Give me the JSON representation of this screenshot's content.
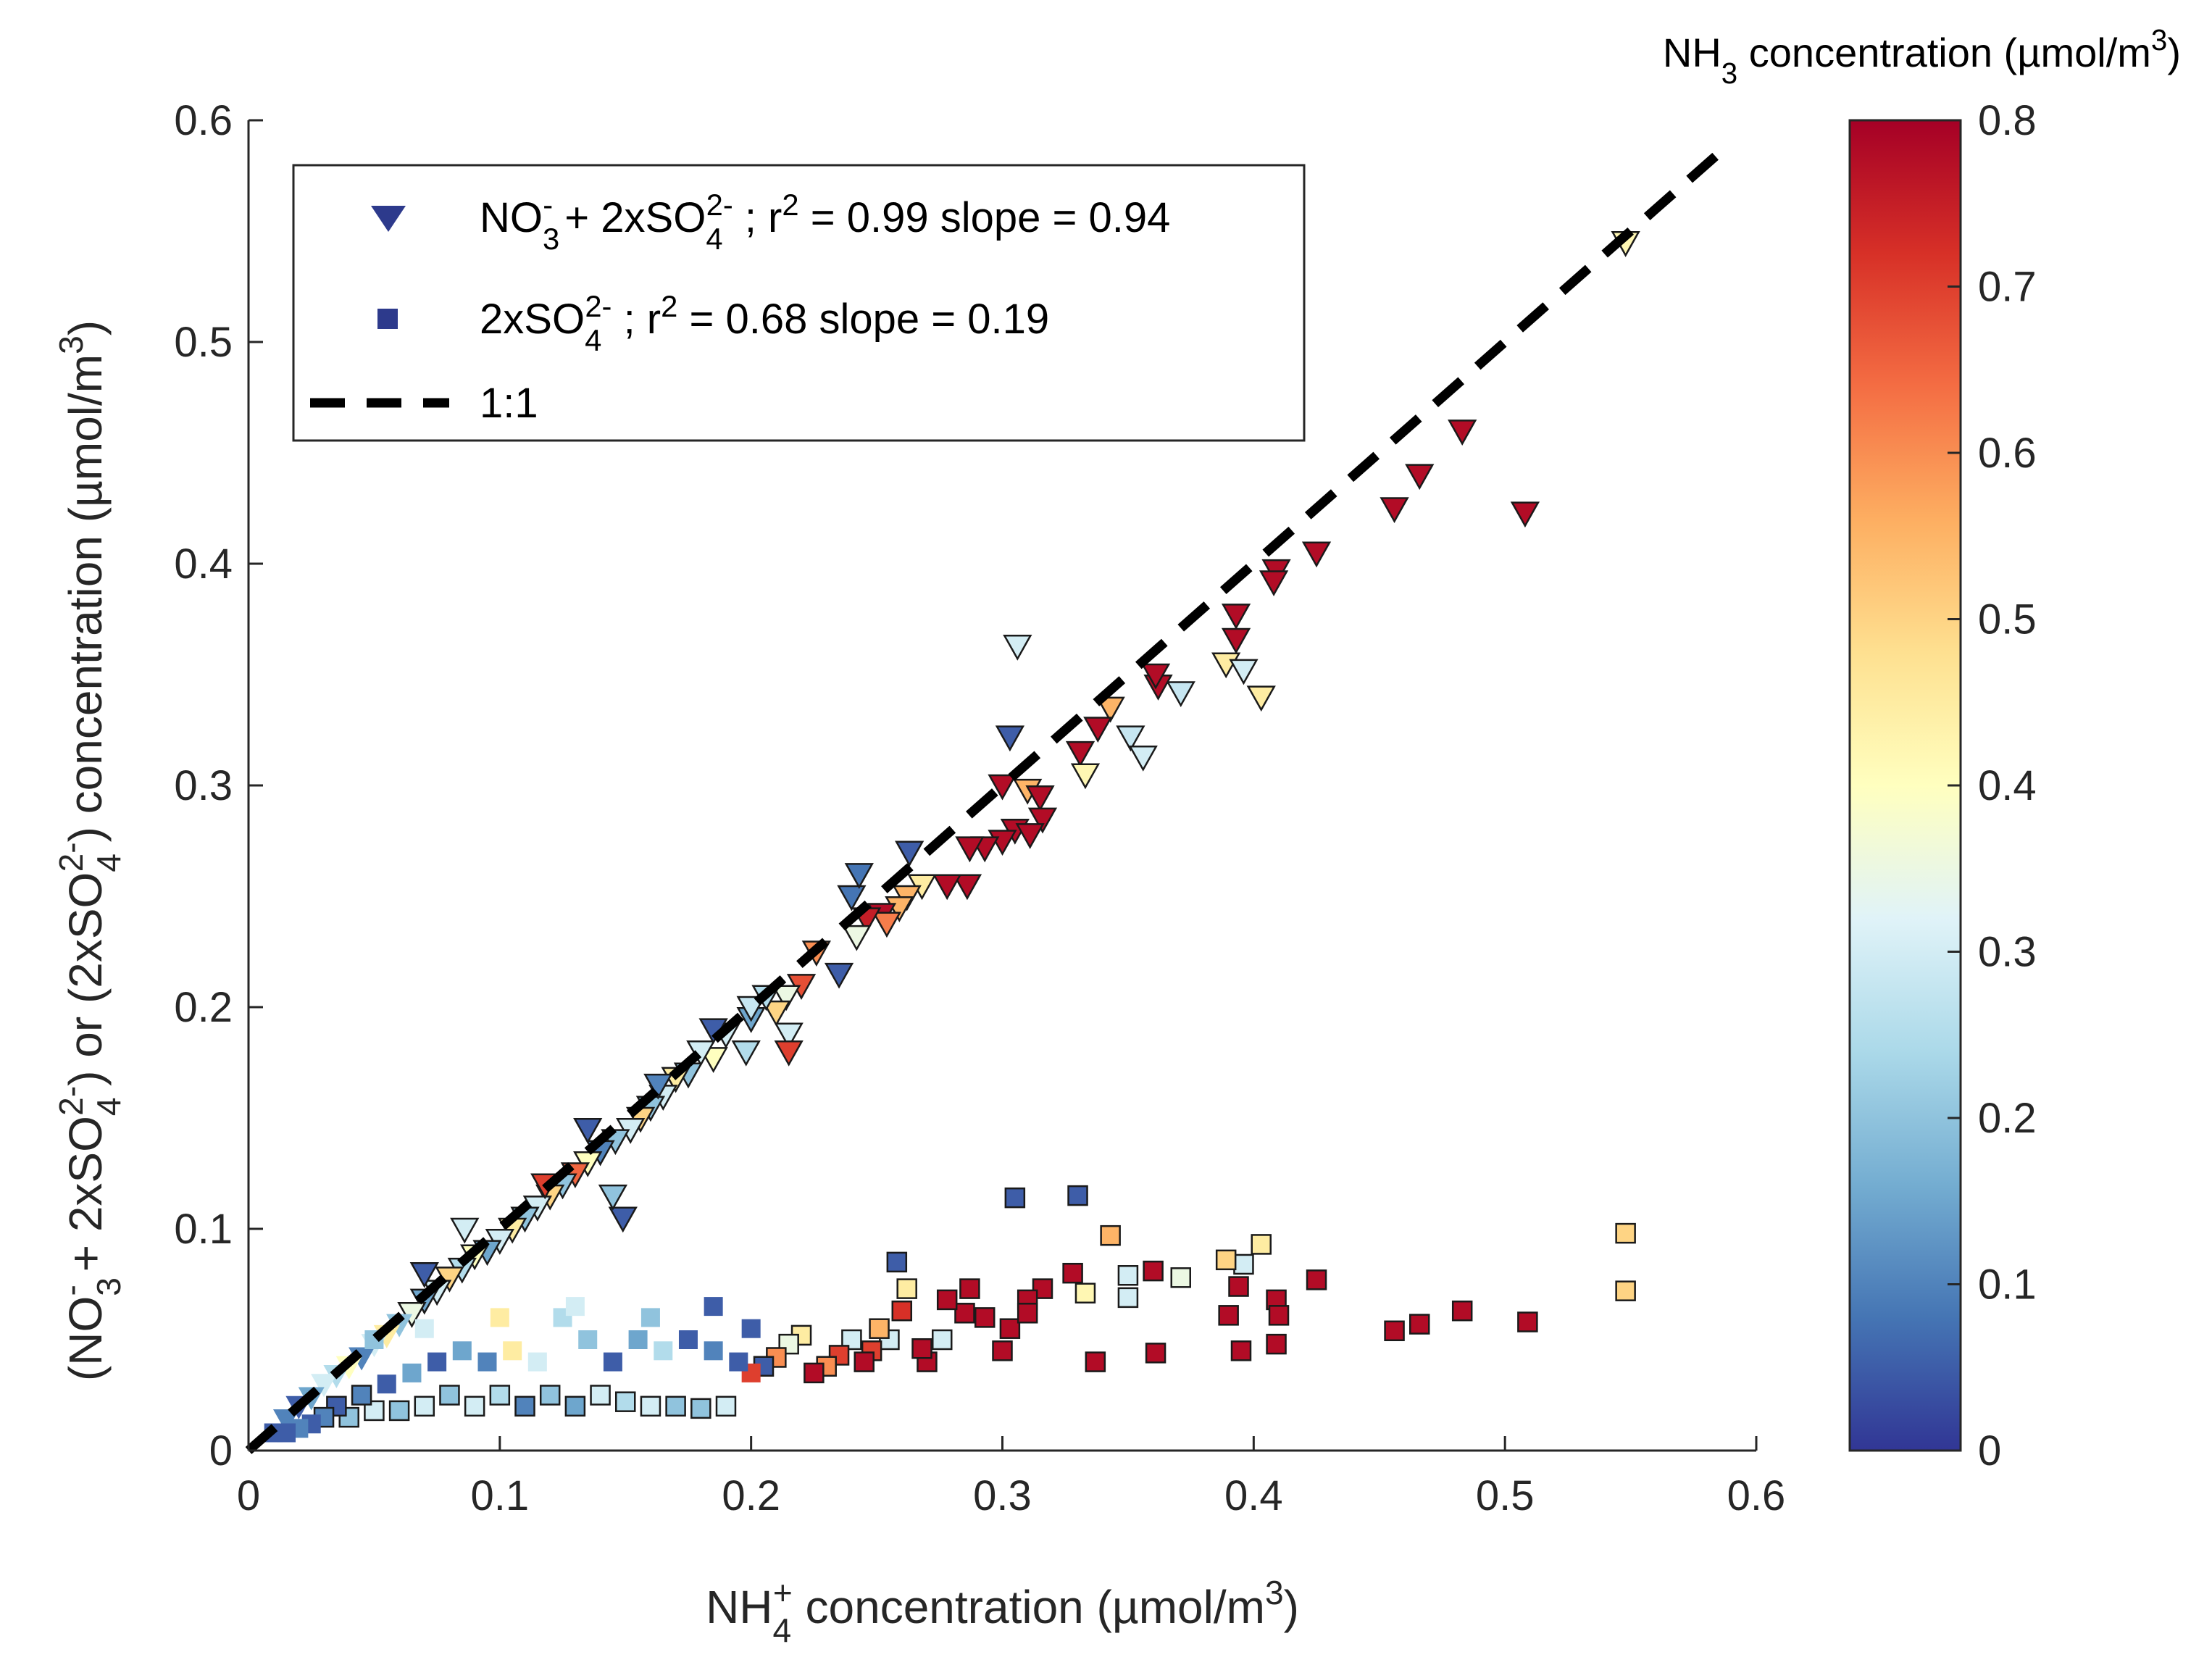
{
  "chart_data": {
    "type": "scatter",
    "xlabel": {
      "base": "NH",
      "sub": "4",
      "sup": "+",
      "rest": " concentration (µmol/m",
      "sup2": "3",
      "end": ")"
    },
    "ylabel": {
      "parts": [
        {
          "t": "(NO"
        },
        {
          "sub": "3",
          "sup": "-"
        },
        {
          "t": " + 2xSO"
        },
        {
          "sub": "4",
          "sup": "2-"
        },
        {
          "t": ") or (2xSO"
        },
        {
          "sub": "4",
          "sup": "2-"
        },
        {
          "t": ") concentration (µmol/m"
        },
        {
          "sup": "3"
        },
        {
          "t": ")"
        }
      ]
    },
    "xlim": [
      0,
      0.6
    ],
    "ylim": [
      0,
      0.6
    ],
    "x_ticks": [
      0,
      0.1,
      0.2,
      0.3,
      0.4,
      0.5,
      0.6
    ],
    "x_tick_labels": [
      "0",
      "0.1",
      "0.2",
      "0.3",
      "0.4",
      "0.5",
      "0.6"
    ],
    "y_ticks": [
      0,
      0.1,
      0.2,
      0.3,
      0.4,
      0.5,
      0.6
    ],
    "y_tick_labels": [
      "0",
      "0.1",
      "0.2",
      "0.3",
      "0.4",
      "0.5",
      "0.6"
    ],
    "colorbar": {
      "title": {
        "base": "NH",
        "sub": "3",
        "rest": " concentration (µmol/m",
        "sup": "3",
        "end": ")"
      },
      "range": [
        0,
        0.8
      ],
      "ticks": [
        0,
        0.1,
        0.2,
        0.3,
        0.4,
        0.5,
        0.6,
        0.7,
        0.8
      ],
      "tick_labels": [
        "0",
        "0.1",
        "0.2",
        "0.3",
        "0.4",
        "0.5",
        "0.6",
        "0.7",
        "0.8"
      ],
      "colormap": [
        "#313695",
        "#4575b4",
        "#74add1",
        "#abd9e9",
        "#e0f3f8",
        "#ffffbf",
        "#fee090",
        "#fdae61",
        "#f46d43",
        "#d73027",
        "#a50026"
      ]
    },
    "legend": {
      "location": "top-left",
      "entries": [
        {
          "marker": "triangle-down",
          "color": "#2d3a8c",
          "parts": [
            {
              "t": "NO"
            },
            {
              "sub": "3",
              "sup": "-"
            },
            {
              "t": " + 2xSO"
            },
            {
              "sub": "4",
              "sup": "2-"
            },
            {
              "t": " ; r"
            },
            {
              "sup": "2"
            },
            {
              "t": " = 0.99 slope = 0.94"
            }
          ]
        },
        {
          "marker": "square",
          "color": "#2d3a8c",
          "parts": [
            {
              "t": "2xSO"
            },
            {
              "sub": "4",
              "sup": "2-"
            },
            {
              "t": " ; r"
            },
            {
              "sup": "2"
            },
            {
              "t": " = 0.68 slope = 0.19"
            }
          ]
        },
        {
          "marker": "dashed-line",
          "color": "#000000",
          "parts": [
            {
              "t": "1:1"
            }
          ]
        }
      ]
    },
    "reference_line": {
      "name": "1:1",
      "x": [
        0,
        0.59
      ],
      "y": [
        0,
        0.59
      ],
      "style": "dashed"
    },
    "series": [
      {
        "name": "NO3- + 2xSO4 2-",
        "marker": "triangle-down",
        "points_xyc": [
          [
            0.548,
            0.545,
            0.42
          ],
          [
            0.483,
            0.46,
            0.78
          ],
          [
            0.466,
            0.44,
            0.78
          ],
          [
            0.456,
            0.425,
            0.78
          ],
          [
            0.508,
            0.423,
            0.78
          ],
          [
            0.425,
            0.405,
            0.78
          ],
          [
            0.409,
            0.397,
            0.78
          ],
          [
            0.408,
            0.392,
            0.78
          ],
          [
            0.393,
            0.377,
            0.78
          ],
          [
            0.393,
            0.366,
            0.78
          ],
          [
            0.389,
            0.355,
            0.45
          ],
          [
            0.396,
            0.352,
            0.3
          ],
          [
            0.403,
            0.34,
            0.45
          ],
          [
            0.371,
            0.342,
            0.28
          ],
          [
            0.362,
            0.345,
            0.78
          ],
          [
            0.361,
            0.35,
            0.78
          ],
          [
            0.343,
            0.335,
            0.55
          ],
          [
            0.338,
            0.326,
            0.78
          ],
          [
            0.351,
            0.322,
            0.28
          ],
          [
            0.356,
            0.313,
            0.3
          ],
          [
            0.331,
            0.315,
            0.78
          ],
          [
            0.333,
            0.305,
            0.42
          ],
          [
            0.306,
            0.363,
            0.3
          ],
          [
            0.303,
            0.322,
            0.05
          ],
          [
            0.3,
            0.3,
            0.78
          ],
          [
            0.31,
            0.298,
            0.55
          ],
          [
            0.315,
            0.295,
            0.78
          ],
          [
            0.316,
            0.285,
            0.78
          ],
          [
            0.305,
            0.28,
            0.78
          ],
          [
            0.311,
            0.278,
            0.78
          ],
          [
            0.3,
            0.275,
            0.78
          ],
          [
            0.293,
            0.272,
            0.78
          ],
          [
            0.287,
            0.272,
            0.78
          ],
          [
            0.286,
            0.255,
            0.78
          ],
          [
            0.278,
            0.255,
            0.78
          ],
          [
            0.263,
            0.27,
            0.05
          ],
          [
            0.268,
            0.255,
            0.45
          ],
          [
            0.262,
            0.25,
            0.55
          ],
          [
            0.259,
            0.245,
            0.55
          ],
          [
            0.252,
            0.242,
            0.78
          ],
          [
            0.254,
            0.238,
            0.62
          ],
          [
            0.246,
            0.24,
            0.75
          ],
          [
            0.242,
            0.232,
            0.35
          ],
          [
            0.24,
            0.25,
            0.08
          ],
          [
            0.243,
            0.26,
            0.08
          ],
          [
            0.226,
            0.225,
            0.6
          ],
          [
            0.22,
            0.21,
            0.68
          ],
          [
            0.214,
            0.205,
            0.35
          ],
          [
            0.215,
            0.188,
            0.3
          ],
          [
            0.21,
            0.198,
            0.5
          ],
          [
            0.206,
            0.205,
            0.25
          ],
          [
            0.2,
            0.195,
            0.15
          ],
          [
            0.2,
            0.2,
            0.28
          ],
          [
            0.198,
            0.18,
            0.25
          ],
          [
            0.19,
            0.188,
            0.3
          ],
          [
            0.185,
            0.177,
            0.4
          ],
          [
            0.18,
            0.18,
            0.3
          ],
          [
            0.175,
            0.17,
            0.2
          ],
          [
            0.17,
            0.168,
            0.45
          ],
          [
            0.165,
            0.16,
            0.3
          ],
          [
            0.16,
            0.155,
            0.2
          ],
          [
            0.156,
            0.15,
            0.5
          ],
          [
            0.152,
            0.145,
            0.3
          ],
          [
            0.146,
            0.14,
            0.2
          ],
          [
            0.14,
            0.135,
            0.1
          ],
          [
            0.135,
            0.13,
            0.4
          ],
          [
            0.13,
            0.125,
            0.65
          ],
          [
            0.125,
            0.12,
            0.2
          ],
          [
            0.12,
            0.115,
            0.5
          ],
          [
            0.115,
            0.11,
            0.3
          ],
          [
            0.11,
            0.105,
            0.2
          ],
          [
            0.105,
            0.1,
            0.45
          ],
          [
            0.1,
            0.095,
            0.3
          ],
          [
            0.095,
            0.09,
            0.15
          ],
          [
            0.09,
            0.088,
            0.4
          ],
          [
            0.085,
            0.082,
            0.25
          ],
          [
            0.08,
            0.078,
            0.5
          ],
          [
            0.075,
            0.072,
            0.3
          ],
          [
            0.07,
            0.068,
            0.15
          ],
          [
            0.065,
            0.062,
            0.35
          ],
          [
            0.06,
            0.057,
            0.2
          ],
          [
            0.055,
            0.052,
            0.45
          ],
          [
            0.05,
            0.048,
            0.3
          ],
          [
            0.045,
            0.042,
            0.1
          ],
          [
            0.04,
            0.038,
            0.4
          ],
          [
            0.035,
            0.034,
            0.25
          ],
          [
            0.03,
            0.03,
            0.3
          ],
          [
            0.025,
            0.024,
            0.15
          ],
          [
            0.02,
            0.02,
            0.05
          ],
          [
            0.015,
            0.014,
            0.1
          ],
          [
            0.149,
            0.105,
            0.05
          ],
          [
            0.145,
            0.115,
            0.2
          ],
          [
            0.086,
            0.1,
            0.3
          ],
          [
            0.118,
            0.12,
            0.7
          ],
          [
            0.215,
            0.18,
            0.7
          ],
          [
            0.235,
            0.215,
            0.05
          ],
          [
            0.185,
            0.19,
            0.05
          ],
          [
            0.163,
            0.165,
            0.1
          ],
          [
            0.135,
            0.145,
            0.05
          ],
          [
            0.07,
            0.08,
            0.05
          ]
        ]
      },
      {
        "name": "2xSO4 2-",
        "marker": "square",
        "points_xyc": [
          [
            0.548,
            0.098,
            0.5
          ],
          [
            0.548,
            0.072,
            0.5
          ],
          [
            0.509,
            0.058,
            0.78
          ],
          [
            0.483,
            0.063,
            0.78
          ],
          [
            0.466,
            0.057,
            0.78
          ],
          [
            0.456,
            0.054,
            0.78
          ],
          [
            0.425,
            0.077,
            0.78
          ],
          [
            0.409,
            0.068,
            0.78
          ],
          [
            0.41,
            0.061,
            0.78
          ],
          [
            0.409,
            0.048,
            0.78
          ],
          [
            0.403,
            0.093,
            0.45
          ],
          [
            0.396,
            0.084,
            0.3
          ],
          [
            0.394,
            0.074,
            0.78
          ],
          [
            0.389,
            0.086,
            0.5
          ],
          [
            0.39,
            0.061,
            0.78
          ],
          [
            0.395,
            0.045,
            0.78
          ],
          [
            0.371,
            0.078,
            0.35
          ],
          [
            0.36,
            0.081,
            0.78
          ],
          [
            0.361,
            0.044,
            0.78
          ],
          [
            0.35,
            0.079,
            0.3
          ],
          [
            0.35,
            0.069,
            0.3
          ],
          [
            0.343,
            0.097,
            0.55
          ],
          [
            0.337,
            0.04,
            0.78
          ],
          [
            0.333,
            0.071,
            0.42
          ],
          [
            0.328,
            0.08,
            0.78
          ],
          [
            0.33,
            0.115,
            0.05
          ],
          [
            0.316,
            0.073,
            0.78
          ],
          [
            0.31,
            0.068,
            0.78
          ],
          [
            0.303,
            0.055,
            0.78
          ],
          [
            0.3,
            0.045,
            0.78
          ],
          [
            0.305,
            0.114,
            0.05
          ],
          [
            0.31,
            0.062,
            0.78
          ],
          [
            0.293,
            0.06,
            0.78
          ],
          [
            0.287,
            0.073,
            0.78
          ],
          [
            0.285,
            0.062,
            0.78
          ],
          [
            0.278,
            0.068,
            0.78
          ],
          [
            0.276,
            0.05,
            0.3
          ],
          [
            0.27,
            0.04,
            0.78
          ],
          [
            0.268,
            0.046,
            0.78
          ],
          [
            0.262,
            0.073,
            0.45
          ],
          [
            0.26,
            0.063,
            0.72
          ],
          [
            0.258,
            0.085,
            0.05
          ],
          [
            0.255,
            0.05,
            0.3
          ],
          [
            0.251,
            0.055,
            0.55
          ],
          [
            0.248,
            0.045,
            0.7
          ],
          [
            0.245,
            0.04,
            0.78
          ],
          [
            0.24,
            0.05,
            0.3
          ],
          [
            0.235,
            0.043,
            0.7
          ],
          [
            0.23,
            0.038,
            0.6
          ],
          [
            0.225,
            0.035,
            0.78
          ],
          [
            0.22,
            0.052,
            0.45
          ],
          [
            0.215,
            0.048,
            0.35
          ],
          [
            0.21,
            0.042,
            0.6
          ],
          [
            0.205,
            0.038,
            0.05
          ],
          [
            0.2,
            0.035,
            0.7
          ],
          [
            0.195,
            0.04,
            0.05
          ],
          [
            0.19,
            0.02,
            0.3
          ],
          [
            0.185,
            0.045,
            0.1
          ],
          [
            0.18,
            0.019,
            0.2
          ],
          [
            0.175,
            0.05,
            0.05
          ],
          [
            0.17,
            0.02,
            0.2
          ],
          [
            0.165,
            0.045,
            0.25
          ],
          [
            0.16,
            0.02,
            0.3
          ],
          [
            0.155,
            0.05,
            0.15
          ],
          [
            0.15,
            0.022,
            0.25
          ],
          [
            0.145,
            0.04,
            0.05
          ],
          [
            0.14,
            0.025,
            0.3
          ],
          [
            0.135,
            0.05,
            0.2
          ],
          [
            0.13,
            0.02,
            0.15
          ],
          [
            0.125,
            0.06,
            0.25
          ],
          [
            0.12,
            0.025,
            0.2
          ],
          [
            0.115,
            0.04,
            0.3
          ],
          [
            0.11,
            0.02,
            0.1
          ],
          [
            0.105,
            0.045,
            0.45
          ],
          [
            0.1,
            0.025,
            0.25
          ],
          [
            0.095,
            0.04,
            0.1
          ],
          [
            0.09,
            0.02,
            0.3
          ],
          [
            0.085,
            0.045,
            0.15
          ],
          [
            0.08,
            0.025,
            0.2
          ],
          [
            0.075,
            0.04,
            0.05
          ],
          [
            0.07,
            0.02,
            0.3
          ],
          [
            0.065,
            0.035,
            0.15
          ],
          [
            0.06,
            0.018,
            0.2
          ],
          [
            0.055,
            0.03,
            0.05
          ],
          [
            0.05,
            0.018,
            0.3
          ],
          [
            0.045,
            0.025,
            0.1
          ],
          [
            0.04,
            0.015,
            0.2
          ],
          [
            0.035,
            0.02,
            0.05
          ],
          [
            0.03,
            0.015,
            0.1
          ],
          [
            0.025,
            0.012,
            0.05
          ],
          [
            0.02,
            0.01,
            0.1
          ],
          [
            0.015,
            0.008,
            0.05
          ],
          [
            0.01,
            0.008,
            0.05
          ],
          [
            0.2,
            0.055,
            0.05
          ],
          [
            0.185,
            0.065,
            0.05
          ],
          [
            0.16,
            0.06,
            0.2
          ],
          [
            0.13,
            0.065,
            0.3
          ],
          [
            0.1,
            0.06,
            0.45
          ],
          [
            0.07,
            0.055,
            0.3
          ],
          [
            0.05,
            0.05,
            0.2
          ]
        ]
      }
    ]
  }
}
